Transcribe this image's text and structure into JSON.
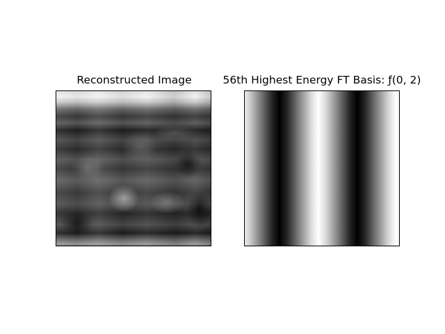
{
  "panels": {
    "left": {
      "title": "Reconstructed Image"
    },
    "right": {
      "title": "56th Highest Energy FT Basis: ƒ(0, 2)",
      "frequency": [
        0,
        2
      ]
    }
  },
  "colormap": "gray"
}
